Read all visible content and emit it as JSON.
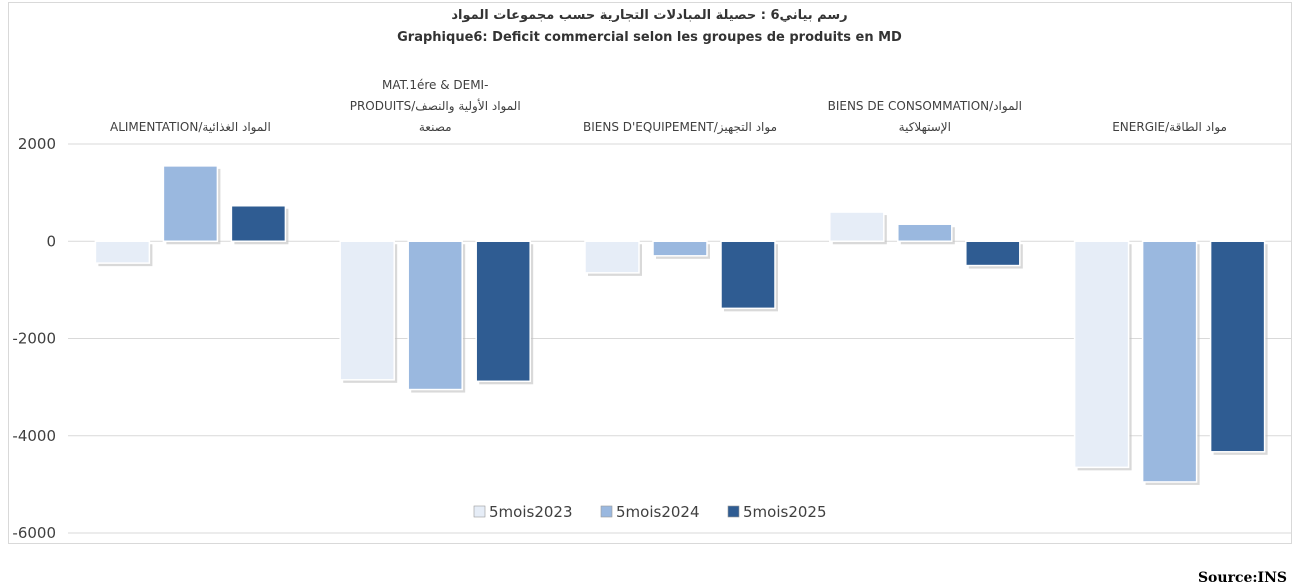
{
  "chart_data": {
    "type": "bar",
    "title_ar": "رسم بياني6 : حصيلة المبادلات التجارية حسب مجموعات المواد",
    "title_fr": "Graphique6: Deficit commercial selon les groupes de produits en MD",
    "categories": [
      [
        "ALIMENTATION/المواد الغذائية"
      ],
      [
        "MAT.1ére & DEMI-",
        "PRODUITS/المواد الأولية والنصف",
        "مصنعة"
      ],
      [
        "BIENS D'EQUIPEMENT/مواد التجهيز"
      ],
      [
        "BIENS DE CONSOMMATION/المواد",
        "الإستهلاكية"
      ],
      [
        "ENERGIE/مواد الطاقة"
      ]
    ],
    "series": [
      {
        "name": "5mois2023",
        "color": "#e6edf7",
        "values": [
          -450,
          -2850,
          -650,
          600,
          -4650
        ]
      },
      {
        "name": "5mois2024",
        "color": "#9ab8df",
        "values": [
          1550,
          -3050,
          -300,
          350,
          -4950
        ]
      },
      {
        "name": "5mois2025",
        "color": "#2f5c92",
        "values": [
          730,
          -2880,
          -1380,
          -500,
          -4330
        ]
      }
    ],
    "yticks": [
      2000,
      0,
      -2000,
      -4000,
      -6000
    ],
    "ylim": [
      -6000,
      2000
    ],
    "grid": true,
    "legend": "bottom-center"
  },
  "source": "Source:INS"
}
